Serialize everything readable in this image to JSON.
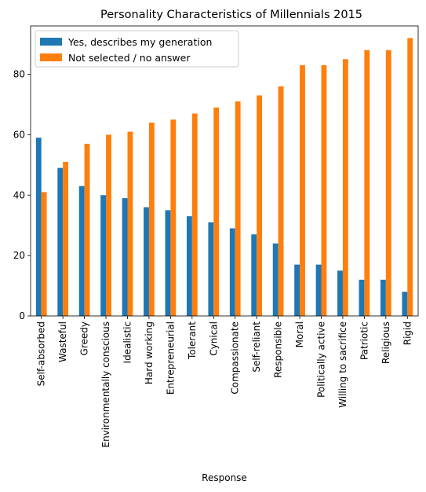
{
  "chart_data": {
    "type": "bar",
    "title": "Personality Characteristics of Millennials 2015",
    "xlabel": "Response",
    "ylabel": "",
    "ylim": [
      0,
      96
    ],
    "yticks": [
      0,
      20,
      40,
      60,
      80
    ],
    "grid": false,
    "legend_position": "top-left",
    "categories": [
      "Self-absorbed",
      "Wasteful",
      "Greedy",
      "Environmentally conscious",
      "Idealistic",
      "Hard working",
      "Entrepreneurial",
      "Tolerant",
      "Cynical",
      "Compassionate",
      "Self-reliant",
      "Responsible",
      "Moral",
      "Politically active",
      "Willing to sacrifice",
      "Patriotic",
      "Religious",
      "Rigid"
    ],
    "series": [
      {
        "name": "Yes, describes my generation",
        "color": "#1f77b4",
        "values": [
          59,
          49,
          43,
          40,
          39,
          36,
          35,
          33,
          31,
          29,
          27,
          24,
          17,
          17,
          15,
          12,
          12,
          8
        ]
      },
      {
        "name": "Not selected / no answer",
        "color": "#ff7f0e",
        "values": [
          41,
          51,
          57,
          60,
          61,
          64,
          65,
          67,
          69,
          71,
          73,
          76,
          83,
          83,
          85,
          88,
          88,
          92
        ]
      }
    ]
  }
}
